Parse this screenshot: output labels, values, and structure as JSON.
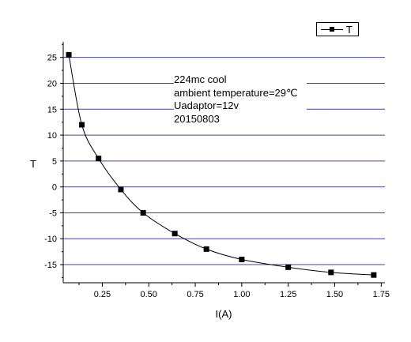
{
  "chart_data": {
    "type": "line",
    "title": "",
    "xlabel": "I(A)",
    "ylabel": "T",
    "xlim": [
      0.04,
      1.77
    ],
    "ylim": [
      -18.5,
      28
    ],
    "x_ticks": [
      0.25,
      0.5,
      0.75,
      1.0,
      1.25,
      1.5,
      1.75
    ],
    "x_tick_labels": [
      "0.25",
      "0.50",
      "0.75",
      "1.00",
      "1.25",
      "1.50",
      "1.75"
    ],
    "y_ticks": [
      -15,
      -10,
      -5,
      0,
      5,
      10,
      15,
      20,
      25
    ],
    "y_tick_labels": [
      "-15",
      "-10",
      "-5",
      "0",
      "5",
      "10",
      "15",
      "20",
      "25"
    ],
    "grid": "horizontal",
    "legend_position": "top-right",
    "series": [
      {
        "name": "T",
        "color": "#000000",
        "marker": "square",
        "x": [
          0.07,
          0.14,
          0.23,
          0.35,
          0.47,
          0.64,
          0.81,
          1.0,
          1.25,
          1.48,
          1.71
        ],
        "y": [
          25.5,
          12,
          5.5,
          -0.5,
          -5,
          -9,
          -12,
          -14,
          -15.5,
          -16.5,
          -17
        ]
      }
    ],
    "annotations": [
      "224mc cool",
      "ambient temperature=29℃",
      "Uadaptor=12v",
      "20150803"
    ]
  },
  "colors": {
    "gridline": "#44449a",
    "axis": "#000000",
    "series": "#000000"
  }
}
